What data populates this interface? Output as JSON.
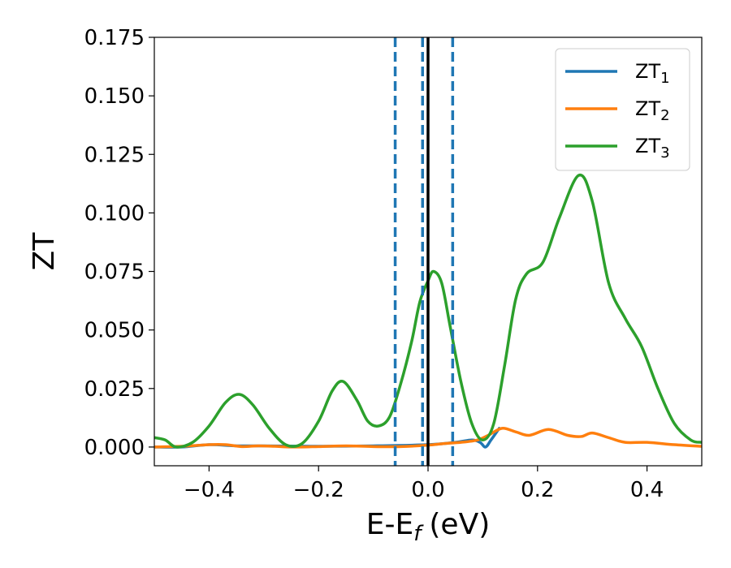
{
  "chart_data": {
    "type": "line",
    "xlabel": "E-E",
    "xlabel_sub": "f",
    "xlabel_unit": "(eV)",
    "ylabel": "ZT",
    "xlim": [
      -0.5,
      0.5
    ],
    "ylim": [
      -0.008,
      0.175
    ],
    "x_ticks": [
      -0.4,
      -0.2,
      0.0,
      0.2,
      0.4
    ],
    "x_tick_labels": [
      "−0.4",
      "−0.2",
      "0.0",
      "0.2",
      "0.4"
    ],
    "y_ticks": [
      0.0,
      0.025,
      0.05,
      0.075,
      0.1,
      0.125,
      0.15,
      0.175
    ],
    "y_tick_labels": [
      "0.000",
      "0.025",
      "0.050",
      "0.075",
      "0.100",
      "0.125",
      "0.150",
      "0.175"
    ],
    "grid": false,
    "legend_position": "top-right",
    "vlines": [
      {
        "x": -0.06,
        "style": "dashed",
        "color": "#1f77b4"
      },
      {
        "x": -0.01,
        "style": "dashed",
        "color": "#1f77b4"
      },
      {
        "x": 0.0,
        "style": "solid",
        "color": "#000000"
      },
      {
        "x": 0.045,
        "style": "dashed",
        "color": "#1f77b4"
      }
    ],
    "series": [
      {
        "name": "ZT",
        "name_sub": "1",
        "color": "#1f77b4",
        "points": [
          [
            -0.5,
            0.0
          ],
          [
            -0.45,
            0.0
          ],
          [
            -0.4,
            0.001
          ],
          [
            -0.35,
            0.0005
          ],
          [
            -0.3,
            0.0005
          ],
          [
            -0.2,
            0.0003
          ],
          [
            -0.1,
            0.0005
          ],
          [
            0.0,
            0.001
          ],
          [
            0.05,
            0.002
          ],
          [
            0.08,
            0.003
          ],
          [
            0.095,
            0.002
          ],
          [
            0.105,
            0.0
          ],
          [
            0.115,
            0.003
          ],
          [
            0.13,
            0.008
          ]
        ]
      },
      {
        "name": "ZT",
        "name_sub": "2",
        "color": "#ff7f0e",
        "points": [
          [
            -0.5,
            0.0
          ],
          [
            -0.45,
            0.0003
          ],
          [
            -0.4,
            0.001
          ],
          [
            -0.37,
            0.001
          ],
          [
            -0.34,
            0.0002
          ],
          [
            -0.31,
            0.0005
          ],
          [
            -0.28,
            0.0003
          ],
          [
            -0.25,
            0.0
          ],
          [
            -0.2,
            0.0002
          ],
          [
            -0.15,
            0.0005
          ],
          [
            -0.1,
            0.0002
          ],
          [
            -0.05,
            0.0002
          ],
          [
            0.0,
            0.0008
          ],
          [
            0.03,
            0.0015
          ],
          [
            0.06,
            0.002
          ],
          [
            0.09,
            0.003
          ],
          [
            0.11,
            0.005
          ],
          [
            0.135,
            0.008
          ],
          [
            0.16,
            0.0065
          ],
          [
            0.185,
            0.005
          ],
          [
            0.22,
            0.0075
          ],
          [
            0.255,
            0.005
          ],
          [
            0.28,
            0.0045
          ],
          [
            0.3,
            0.006
          ],
          [
            0.33,
            0.004
          ],
          [
            0.36,
            0.002
          ],
          [
            0.4,
            0.002
          ],
          [
            0.45,
            0.001
          ],
          [
            0.5,
            0.0003
          ]
        ]
      },
      {
        "name": "ZT",
        "name_sub": "3",
        "color": "#2ca02c",
        "points": [
          [
            -0.5,
            0.004
          ],
          [
            -0.48,
            0.003
          ],
          [
            -0.46,
            0.0
          ],
          [
            -0.43,
            0.002
          ],
          [
            -0.4,
            0.009
          ],
          [
            -0.37,
            0.019
          ],
          [
            -0.345,
            0.0225
          ],
          [
            -0.32,
            0.018
          ],
          [
            -0.29,
            0.008
          ],
          [
            -0.26,
            0.001
          ],
          [
            -0.23,
            0.0015
          ],
          [
            -0.2,
            0.011
          ],
          [
            -0.175,
            0.024
          ],
          [
            -0.155,
            0.028
          ],
          [
            -0.13,
            0.02
          ],
          [
            -0.11,
            0.011
          ],
          [
            -0.09,
            0.009
          ],
          [
            -0.07,
            0.013
          ],
          [
            -0.05,
            0.027
          ],
          [
            -0.03,
            0.045
          ],
          [
            -0.015,
            0.062
          ],
          [
            0.0,
            0.071
          ],
          [
            0.01,
            0.075
          ],
          [
            0.025,
            0.07
          ],
          [
            0.04,
            0.052
          ],
          [
            0.06,
            0.028
          ],
          [
            0.08,
            0.01
          ],
          [
            0.1,
            0.003
          ],
          [
            0.12,
            0.01
          ],
          [
            0.14,
            0.035
          ],
          [
            0.16,
            0.063
          ],
          [
            0.18,
            0.074
          ],
          [
            0.21,
            0.079
          ],
          [
            0.24,
            0.098
          ],
          [
            0.275,
            0.116
          ],
          [
            0.3,
            0.105
          ],
          [
            0.33,
            0.07
          ],
          [
            0.36,
            0.055
          ],
          [
            0.39,
            0.043
          ],
          [
            0.42,
            0.025
          ],
          [
            0.45,
            0.01
          ],
          [
            0.48,
            0.003
          ],
          [
            0.5,
            0.002
          ]
        ]
      }
    ]
  }
}
